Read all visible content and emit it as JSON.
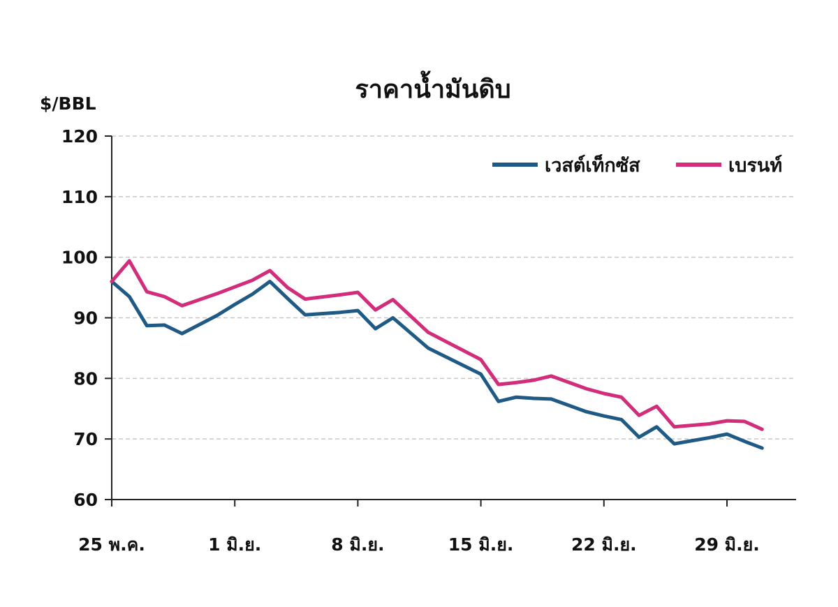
{
  "chart_data": {
    "type": "line",
    "title": "ราคาน้ำมันดิบ",
    "ylabel": "$/BBL",
    "xlabel": "",
    "ylim": [
      60,
      120
    ],
    "yticks": [
      120,
      110,
      100,
      90,
      80,
      70,
      60
    ],
    "grid": true,
    "legend_position": "top-right",
    "x_tick_labels": [
      "25 พ.ค.",
      "1 มิ.ย.",
      "8 มิ.ย.",
      "15 มิ.ย.",
      "22 มิ.ย.",
      "29 มิ.ย."
    ],
    "x_tick_days": [
      0,
      7,
      14,
      21,
      28,
      35
    ],
    "x_days": [
      0,
      1,
      2,
      3,
      4,
      6,
      7,
      8,
      9,
      10,
      11,
      13,
      14,
      15,
      16,
      18,
      21,
      22,
      23,
      24,
      25,
      27,
      28,
      29,
      30,
      31,
      32,
      34,
      35,
      36,
      37
    ],
    "series": [
      {
        "name": "เวสต์เท็กซัส",
        "color": "#1f5a85",
        "values": [
          96.0,
          93.5,
          88.7,
          88.8,
          87.4,
          90.4,
          92.2,
          93.9,
          96.0,
          93.2,
          90.5,
          90.9,
          91.2,
          88.2,
          90.0,
          85.0,
          80.7,
          76.2,
          76.9,
          76.7,
          76.6,
          74.5,
          73.8,
          73.2,
          70.3,
          72.0,
          69.2,
          70.2,
          70.8,
          69.6,
          68.5
        ]
      },
      {
        "name": "เบรนท์",
        "color": "#d12d7b",
        "values": [
          96.0,
          99.4,
          94.3,
          93.5,
          92.0,
          94.0,
          95.1,
          96.2,
          97.8,
          95.0,
          93.1,
          93.8,
          94.2,
          91.3,
          93.0,
          87.6,
          83.1,
          79.0,
          79.3,
          79.7,
          80.4,
          78.3,
          77.5,
          76.9,
          73.9,
          75.4,
          72.0,
          72.5,
          73.0,
          72.9,
          71.6
        ]
      }
    ]
  }
}
